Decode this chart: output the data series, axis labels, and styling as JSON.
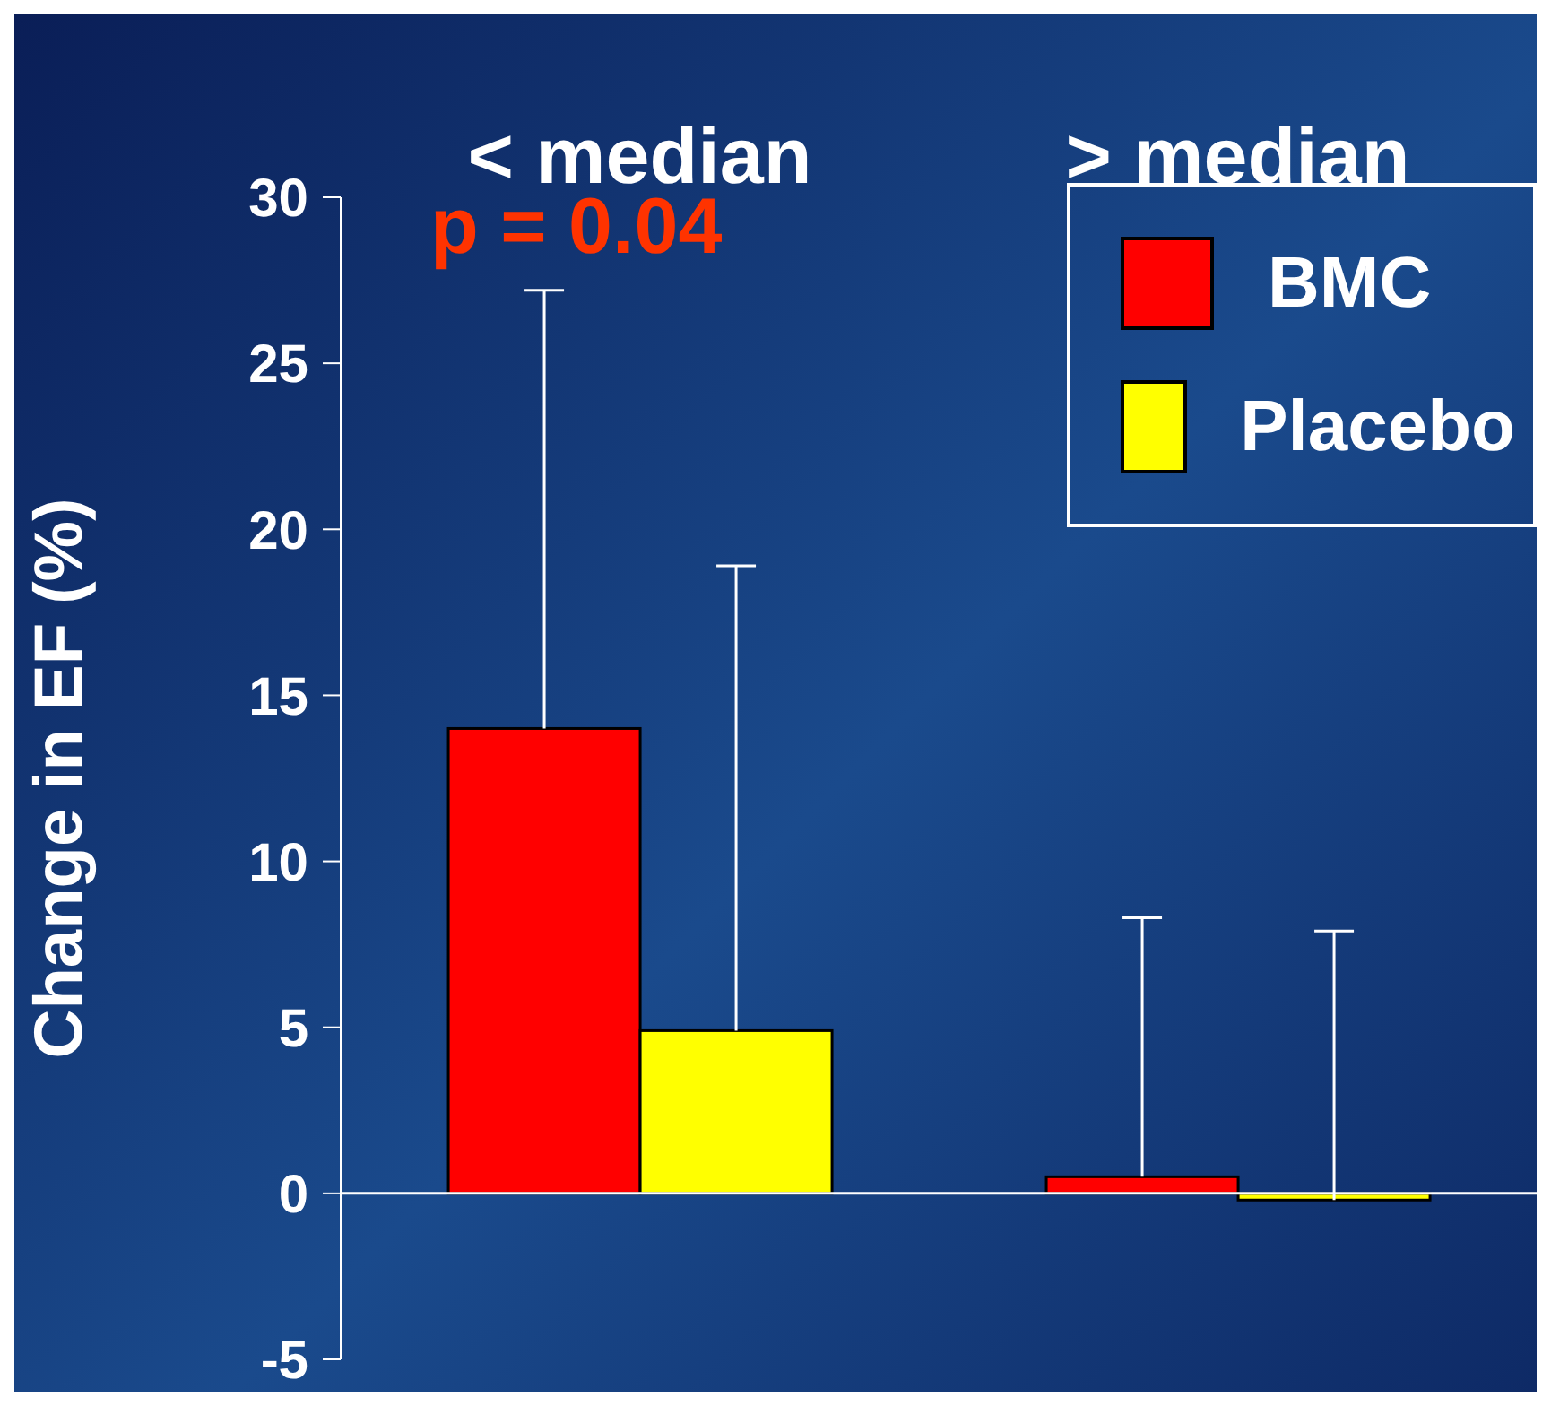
{
  "chart_data": {
    "type": "bar",
    "categories": [
      "< median",
      "> median"
    ],
    "ylabel": "Change in EF (%)",
    "ylim": [
      -5,
      30
    ],
    "yticks": [
      -5,
      0,
      5,
      10,
      15,
      20,
      25,
      30
    ],
    "grid": false,
    "legend": "top right",
    "annotations": [
      "p = 0.04"
    ],
    "ref_lines": [
      {
        "axis": "y",
        "value": 0,
        "color": "#ffffff"
      }
    ],
    "series": [
      {
        "name": "BMC",
        "color": "#ff0000",
        "values": [
          14.0,
          0.5
        ],
        "errors": [
          [
            14.0,
            27.2
          ],
          [
            0.5,
            8.3
          ]
        ]
      },
      {
        "name": "Placebo",
        "color": "#ffff00",
        "values": [
          4.9,
          -0.2
        ],
        "errors": [
          [
            4.9,
            18.9
          ],
          [
            -0.2,
            7.9
          ]
        ]
      }
    ]
  }
}
